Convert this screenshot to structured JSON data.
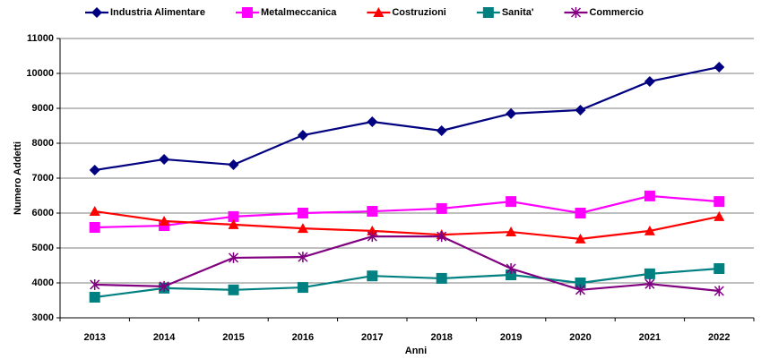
{
  "chart_data": {
    "type": "line",
    "x_label": "Anni",
    "y_label": "Numero Addetti",
    "categories": [
      "2013",
      "2014",
      "2015",
      "2016",
      "2017",
      "2018",
      "2019",
      "2020",
      "2021",
      "2022"
    ],
    "series": [
      {
        "name": "Industria Alimentare",
        "color": "#000080",
        "marker": "diamond",
        "values": [
          7230,
          7540,
          7385,
          8230,
          8615,
          8360,
          8850,
          8950,
          9770,
          10180
        ]
      },
      {
        "name": "Metalmeccanica",
        "color": "#ff00ff",
        "marker": "square",
        "values": [
          5590,
          5640,
          5900,
          6000,
          6050,
          6130,
          6330,
          6000,
          6490,
          6330
        ]
      },
      {
        "name": "Costruzioni",
        "color": "#ff0000",
        "marker": "triangle",
        "values": [
          6050,
          5770,
          5670,
          5560,
          5490,
          5380,
          5460,
          5260,
          5490,
          5900
        ]
      },
      {
        "name": "Sanita'",
        "color": "#008080",
        "marker": "square",
        "values": [
          3590,
          3850,
          3800,
          3870,
          4200,
          4130,
          4230,
          4000,
          4260,
          4410
        ]
      },
      {
        "name": "Commercio",
        "color": "#800080",
        "marker": "star",
        "values": [
          3950,
          3900,
          4720,
          4740,
          5330,
          5330,
          4410,
          3800,
          3970,
          3770
        ]
      }
    ],
    "ylim": [
      3000,
      11000
    ],
    "yticks": [
      3000,
      4000,
      5000,
      6000,
      7000,
      8000,
      9000,
      10000,
      11000
    ],
    "grid": true,
    "legend": "top"
  }
}
